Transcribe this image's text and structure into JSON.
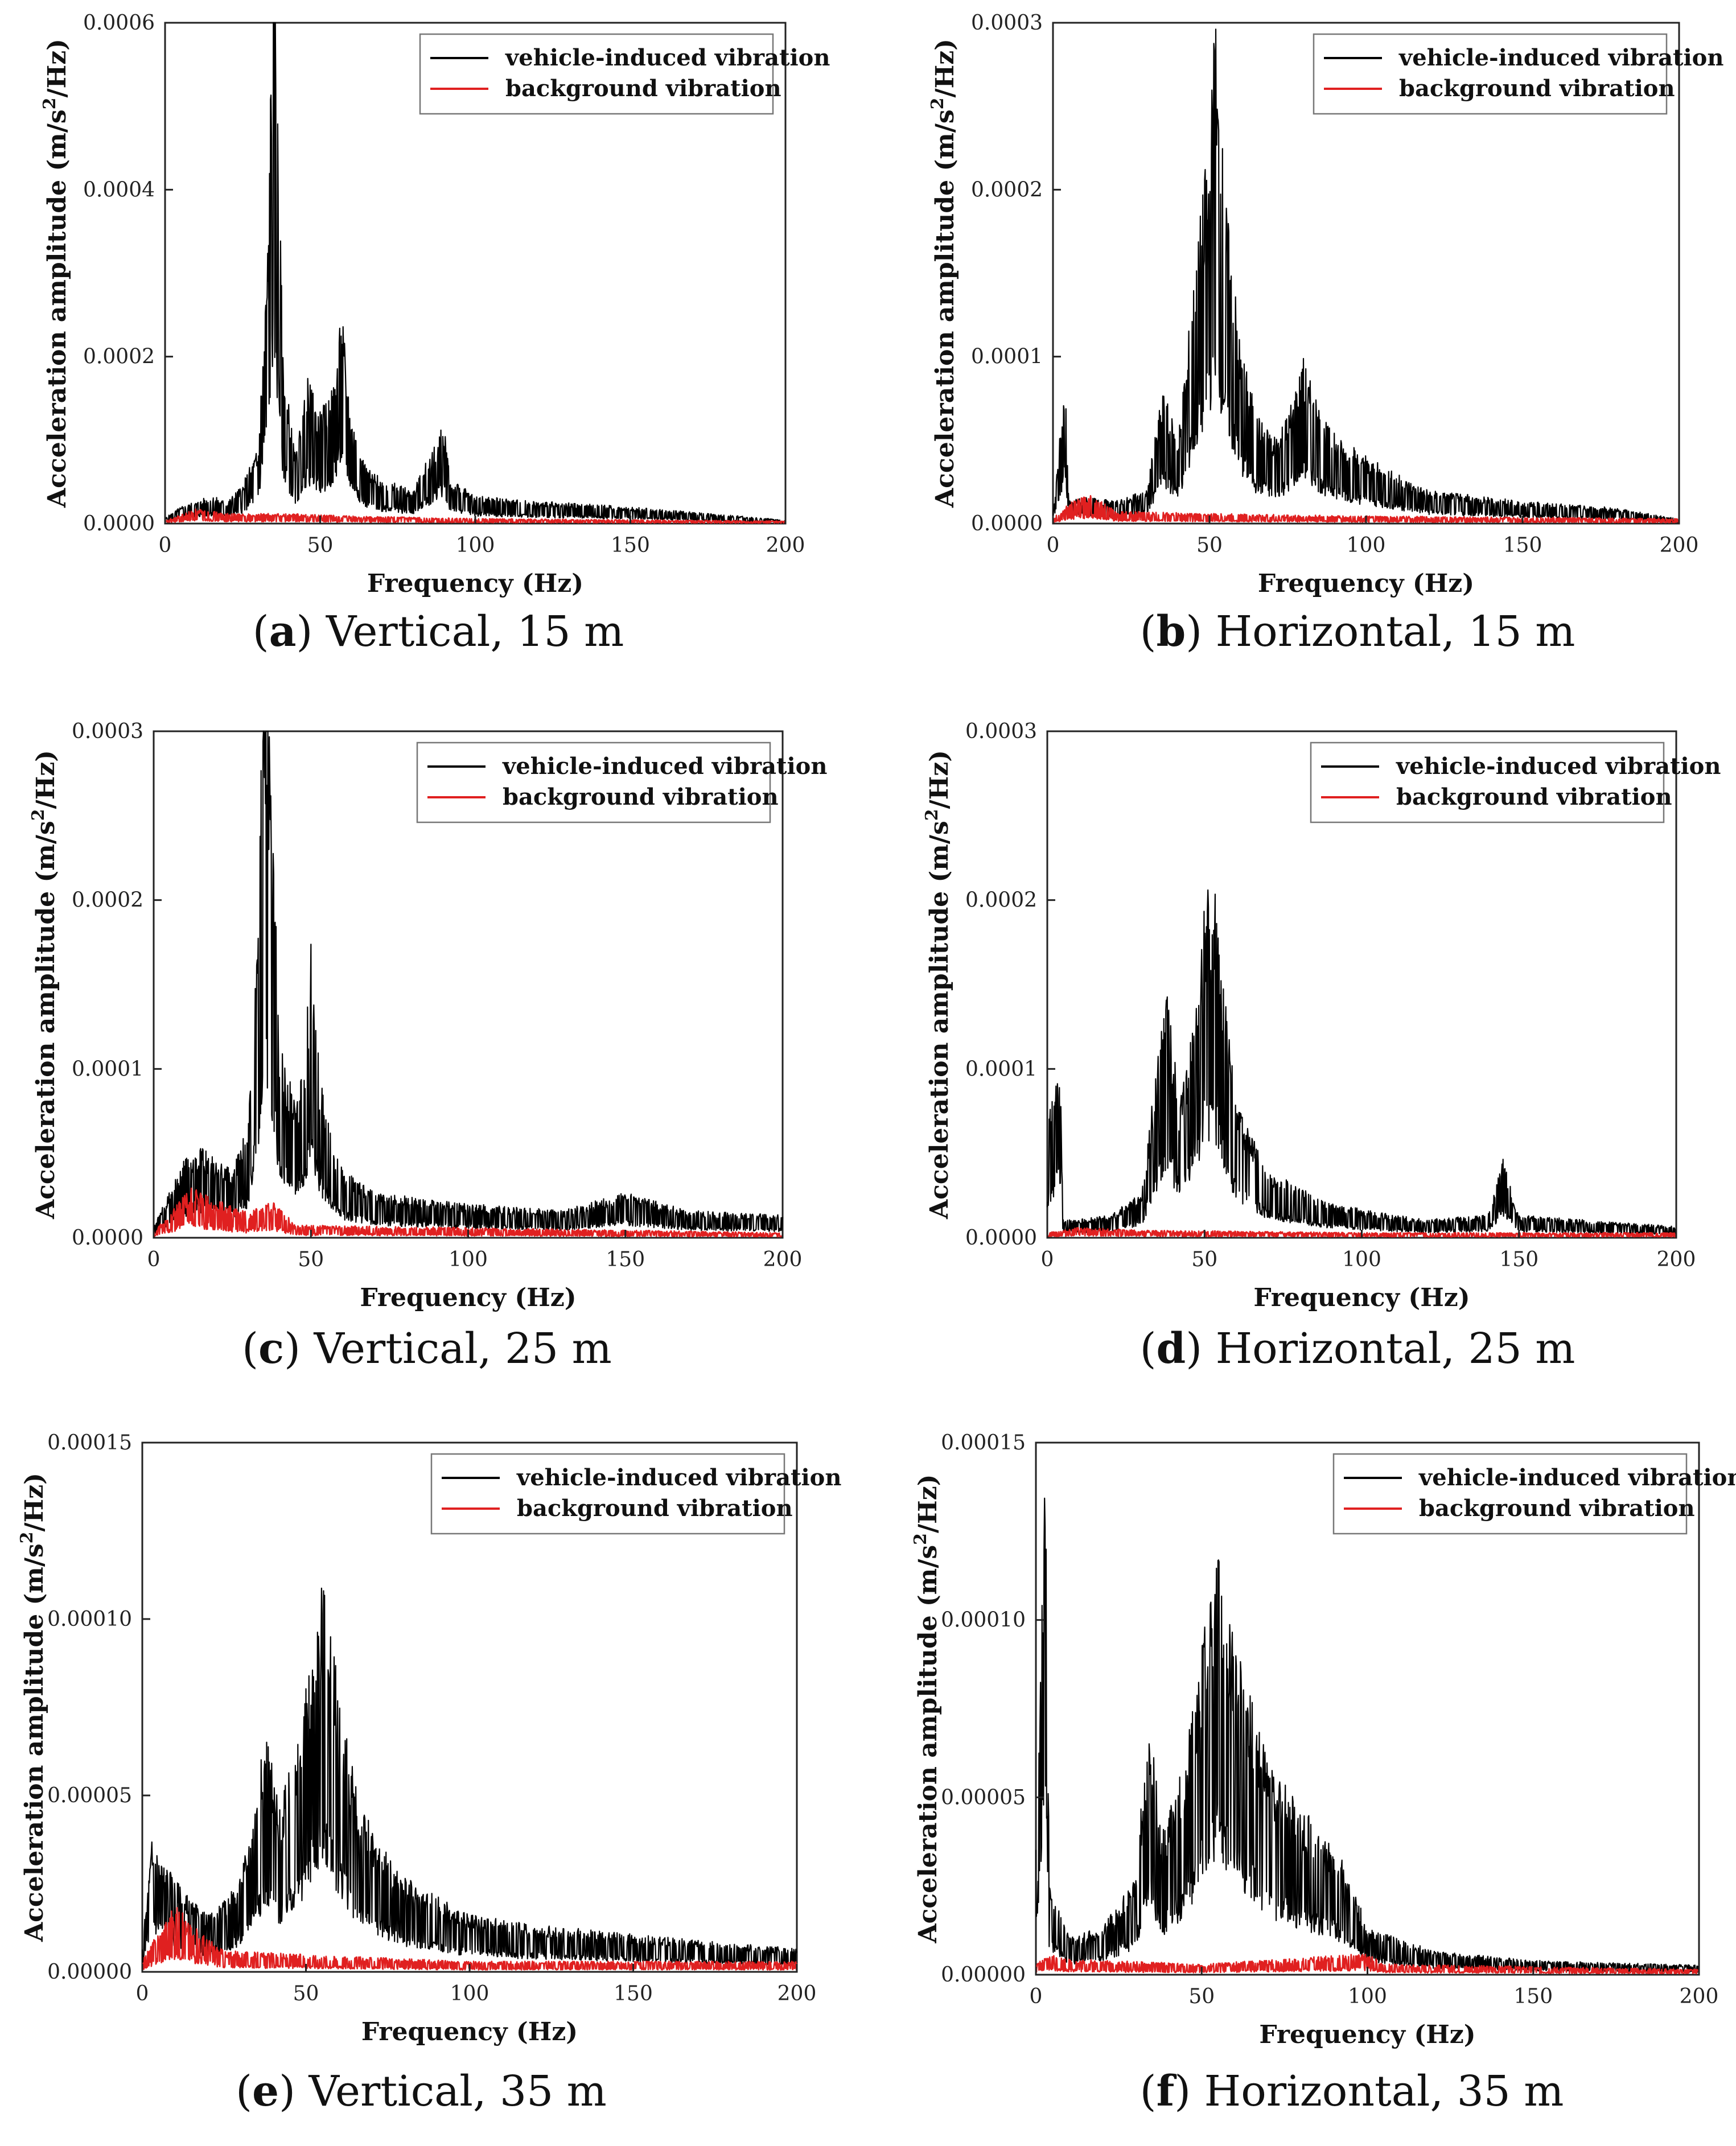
{
  "chart_data": [
    {
      "type": "line",
      "panel": "a",
      "caption_letter": "a",
      "caption_text": "Vertical, 15 m",
      "xlabel": "Frequency (Hz)",
      "ylabel_main": "Acceleration amplitude (m/s",
      "ylabel_sup": "2",
      "ylabel_end": "/Hz)",
      "xlim": [
        0,
        200
      ],
      "ylim": [
        0,
        0.0006
      ],
      "xticks": [
        0,
        50,
        100,
        150,
        200
      ],
      "yticks": [
        0,
        0.0002,
        0.0004,
        0.0006
      ],
      "ytick_labels": [
        "0.0000",
        "0.0002",
        "0.0004",
        "0.0006"
      ],
      "legend": [
        "vehicle-induced vibration",
        "background vibration"
      ],
      "legend_position": "top-right",
      "series": [
        {
          "name": "vehicle-induced vibration",
          "color": "#000000",
          "noise": 0.35,
          "points": [
            [
              0,
              5e-06
            ],
            [
              5,
              1.5e-05
            ],
            [
              10,
              2e-05
            ],
            [
              15,
              2.5e-05
            ],
            [
              20,
              2e-05
            ],
            [
              25,
              3.5e-05
            ],
            [
              30,
              7e-05
            ],
            [
              33,
              0.00025
            ],
            [
              35,
              0.00055
            ],
            [
              36,
              0.00042
            ],
            [
              38,
              0.00015
            ],
            [
              42,
              6e-05
            ],
            [
              46,
              0.00013
            ],
            [
              50,
              0.0001
            ],
            [
              54,
              0.00012
            ],
            [
              57,
              0.00019
            ],
            [
              60,
              0.0001
            ],
            [
              65,
              5e-05
            ],
            [
              70,
              4e-05
            ],
            [
              80,
              3e-05
            ],
            [
              90,
              9e-05
            ],
            [
              92,
              4e-05
            ],
            [
              100,
              2.5e-05
            ],
            [
              120,
              2e-05
            ],
            [
              150,
              1.5e-05
            ],
            [
              180,
              8e-06
            ],
            [
              200,
              3e-06
            ]
          ]
        },
        {
          "name": "background vibration",
          "color": "#e02020",
          "noise": 0.5,
          "points": [
            [
              0,
              2e-06
            ],
            [
              10,
              1.2e-05
            ],
            [
              20,
              8e-06
            ],
            [
              40,
              8e-06
            ],
            [
              60,
              6e-06
            ],
            [
              100,
              4e-06
            ],
            [
              150,
              3e-06
            ],
            [
              200,
              2e-06
            ]
          ]
        }
      ]
    },
    {
      "type": "line",
      "panel": "b",
      "caption_letter": "b",
      "caption_text": "Horizontal, 15 m",
      "xlabel": "Frequency (Hz)",
      "ylabel_main": "Acceleration amplitude (m/s",
      "ylabel_sup": "2",
      "ylabel_end": "/Hz)",
      "xlim": [
        0,
        200
      ],
      "ylim": [
        0,
        0.0003
      ],
      "xticks": [
        0,
        50,
        100,
        150,
        200
      ],
      "yticks": [
        0,
        0.0001,
        0.0002,
        0.0003
      ],
      "ytick_labels": [
        "0.0000",
        "0.0001",
        "0.0002",
        "0.0003"
      ],
      "legend": [
        "vehicle-induced vibration",
        "background vibration"
      ],
      "legend_position": "top-right",
      "series": [
        {
          "name": "vehicle-induced vibration",
          "color": "#000000",
          "noise": 0.35,
          "points": [
            [
              0,
              3e-06
            ],
            [
              4,
              6.8e-05
            ],
            [
              5,
              1e-05
            ],
            [
              10,
              1.2e-05
            ],
            [
              20,
              1e-05
            ],
            [
              30,
              1.5e-05
            ],
            [
              35,
              6e-05
            ],
            [
              40,
              4e-05
            ],
            [
              45,
              0.00011
            ],
            [
              50,
              0.00018
            ],
            [
              52,
              0.00023
            ],
            [
              55,
              0.00015
            ],
            [
              60,
              8e-05
            ],
            [
              65,
              5e-05
            ],
            [
              70,
              4e-05
            ],
            [
              75,
              5e-05
            ],
            [
              80,
              7.5e-05
            ],
            [
              85,
              5e-05
            ],
            [
              90,
              4e-05
            ],
            [
              100,
              3e-05
            ],
            [
              120,
              1.5e-05
            ],
            [
              150,
              1e-05
            ],
            [
              180,
              7e-06
            ],
            [
              200,
              2e-06
            ]
          ]
        },
        {
          "name": "background vibration",
          "color": "#e02020",
          "noise": 0.5,
          "points": [
            [
              0,
              2e-06
            ],
            [
              5,
              8e-06
            ],
            [
              12,
              1.2e-05
            ],
            [
              20,
              5e-06
            ],
            [
              50,
              4e-06
            ],
            [
              100,
              3e-06
            ],
            [
              200,
              2e-06
            ]
          ]
        }
      ]
    },
    {
      "type": "line",
      "panel": "c",
      "caption_letter": "c",
      "caption_text": "Vertical, 25 m",
      "xlabel": "Frequency (Hz)",
      "ylabel_main": "Acceleration amplitude (m/s",
      "ylabel_sup": "2",
      "ylabel_end": "/Hz)",
      "xlim": [
        0,
        200
      ],
      "ylim": [
        0,
        0.0003
      ],
      "xticks": [
        0,
        50,
        100,
        150,
        200
      ],
      "yticks": [
        0,
        0.0001,
        0.0002,
        0.0003
      ],
      "ytick_labels": [
        "0.0000",
        "0.0001",
        "0.0002",
        "0.0003"
      ],
      "legend": [
        "vehicle-induced vibration",
        "background vibration"
      ],
      "legend_position": "top-right",
      "series": [
        {
          "name": "vehicle-induced vibration",
          "color": "#000000",
          "noise": 0.35,
          "points": [
            [
              0,
              5e-06
            ],
            [
              5,
              2e-05
            ],
            [
              10,
              3.5e-05
            ],
            [
              15,
              4e-05
            ],
            [
              20,
              3.5e-05
            ],
            [
              25,
              3e-05
            ],
            [
              30,
              5e-05
            ],
            [
              33,
              0.00013
            ],
            [
              35,
              0.00026
            ],
            [
              37,
              0.00022
            ],
            [
              40,
              9e-05
            ],
            [
              45,
              6e-05
            ],
            [
              48,
              8e-05
            ],
            [
              50,
              0.00013
            ],
            [
              53,
              7e-05
            ],
            [
              57,
              4e-05
            ],
            [
              60,
              3e-05
            ],
            [
              70,
              2e-05
            ],
            [
              100,
              1.5e-05
            ],
            [
              130,
              1.2e-05
            ],
            [
              150,
              2e-05
            ],
            [
              170,
              1.2e-05
            ],
            [
              200,
              1e-05
            ]
          ]
        },
        {
          "name": "background vibration",
          "color": "#e02020",
          "noise": 0.5,
          "points": [
            [
              0,
              2e-06
            ],
            [
              5,
              1e-05
            ],
            [
              12,
              2e-05
            ],
            [
              20,
              1.5e-05
            ],
            [
              30,
              1e-05
            ],
            [
              38,
              1.5e-05
            ],
            [
              45,
              5e-06
            ],
            [
              100,
              4e-06
            ],
            [
              200,
              2e-06
            ]
          ]
        }
      ]
    },
    {
      "type": "line",
      "panel": "d",
      "caption_letter": "d",
      "caption_text": "Horizontal, 25 m",
      "xlabel": "Frequency (Hz)",
      "ylabel_main": "Acceleration amplitude (m/s",
      "ylabel_sup": "2",
      "ylabel_end": "/Hz)",
      "xlim": [
        0,
        200
      ],
      "ylim": [
        0,
        0.0003
      ],
      "xticks": [
        0,
        50,
        100,
        150,
        200
      ],
      "yticks": [
        0,
        0.0001,
        0.0002,
        0.0003
      ],
      "ytick_labels": [
        "0.0000",
        "0.0001",
        "0.0002",
        "0.0003"
      ],
      "legend": [
        "vehicle-induced vibration",
        "background vibration"
      ],
      "legend_position": "top-right",
      "series": [
        {
          "name": "vehicle-induced vibration",
          "color": "#000000",
          "noise": 0.35,
          "points": [
            [
              0,
              5e-05
            ],
            [
              4,
              8e-05
            ],
            [
              5,
              8e-06
            ],
            [
              10,
              8e-06
            ],
            [
              20,
              1e-05
            ],
            [
              30,
              2e-05
            ],
            [
              35,
              8e-05
            ],
            [
              38,
              0.00011
            ],
            [
              42,
              6e-05
            ],
            [
              45,
              8e-05
            ],
            [
              50,
              0.00015
            ],
            [
              53,
              0.00016
            ],
            [
              57,
              0.0001
            ],
            [
              60,
              6e-05
            ],
            [
              70,
              3e-05
            ],
            [
              90,
              1.5e-05
            ],
            [
              120,
              8e-06
            ],
            [
              140,
              1e-05
            ],
            [
              145,
              3.5e-05
            ],
            [
              150,
              1e-05
            ],
            [
              200,
              5e-06
            ]
          ]
        },
        {
          "name": "background vibration",
          "color": "#e02020",
          "noise": 0.5,
          "points": [
            [
              0,
              2e-06
            ],
            [
              10,
              4e-06
            ],
            [
              30,
              3e-06
            ],
            [
              100,
              2e-06
            ],
            [
              200,
              2e-06
            ]
          ]
        }
      ]
    },
    {
      "type": "line",
      "panel": "e",
      "caption_letter": "e",
      "caption_text": "Vertical, 35 m",
      "xlabel": "Frequency (Hz)",
      "ylabel_main": "Acceleration amplitude (m/s",
      "ylabel_sup": "2",
      "ylabel_end": "/Hz)",
      "xlim": [
        0,
        200
      ],
      "ylim": [
        0,
        0.00015
      ],
      "xticks": [
        0,
        50,
        100,
        150,
        200
      ],
      "yticks": [
        0,
        5e-05,
        0.0001,
        0.00015
      ],
      "ytick_labels": [
        "0.00000",
        "0.00005",
        "0.00010",
        "0.00015"
      ],
      "legend": [
        "vehicle-induced vibration",
        "background vibration"
      ],
      "legend_position": "top-right",
      "series": [
        {
          "name": "vehicle-induced vibration",
          "color": "#000000",
          "noise": 0.35,
          "points": [
            [
              0,
              5e-06
            ],
            [
              3,
              3e-05
            ],
            [
              6,
              2.5e-05
            ],
            [
              10,
              2e-05
            ],
            [
              15,
              1.5e-05
            ],
            [
              20,
              1.2e-05
            ],
            [
              25,
              1.5e-05
            ],
            [
              30,
              2e-05
            ],
            [
              35,
              4e-05
            ],
            [
              38,
              5.2e-05
            ],
            [
              42,
              3.5e-05
            ],
            [
              48,
              5e-05
            ],
            [
              55,
              8.5e-05
            ],
            [
              60,
              6e-05
            ],
            [
              65,
              4e-05
            ],
            [
              70,
              3e-05
            ],
            [
              80,
              2e-05
            ],
            [
              100,
              1.2e-05
            ],
            [
              120,
              1e-05
            ],
            [
              150,
              8e-06
            ],
            [
              180,
              6e-06
            ],
            [
              200,
              5e-06
            ]
          ]
        },
        {
          "name": "background vibration",
          "color": "#e02020",
          "noise": 0.5,
          "points": [
            [
              0,
              2e-06
            ],
            [
              5,
              8e-06
            ],
            [
              10,
              1.3e-05
            ],
            [
              15,
              9e-06
            ],
            [
              25,
              4e-06
            ],
            [
              60,
              3e-06
            ],
            [
              100,
              2e-06
            ],
            [
              200,
              2e-06
            ]
          ]
        }
      ]
    },
    {
      "type": "line",
      "panel": "f",
      "caption_letter": "f",
      "caption_text": "Horizontal, 35 m",
      "xlabel": "Frequency (Hz)",
      "ylabel_main": "Acceleration amplitude (m/s",
      "ylabel_sup": "2",
      "ylabel_end": "/Hz)",
      "xlim": [
        0,
        200
      ],
      "ylim": [
        0,
        0.00015
      ],
      "xticks": [
        0,
        50,
        100,
        150,
        200
      ],
      "yticks": [
        0,
        5e-05,
        0.0001,
        0.00015
      ],
      "ytick_labels": [
        "0.00000",
        "0.00005",
        "0.00010",
        "0.00015"
      ],
      "legend": [
        "vehicle-induced vibration",
        "background vibration"
      ],
      "legend_position": "top-right",
      "series": [
        {
          "name": "vehicle-induced vibration",
          "color": "#000000",
          "noise": 0.35,
          "points": [
            [
              0,
              3e-05
            ],
            [
              3,
              0.00012
            ],
            [
              4,
              2e-05
            ],
            [
              10,
              8e-06
            ],
            [
              20,
              1e-05
            ],
            [
              30,
              2e-05
            ],
            [
              34,
              5.5e-05
            ],
            [
              38,
              3e-05
            ],
            [
              45,
              4.5e-05
            ],
            [
              50,
              7e-05
            ],
            [
              55,
              9e-05
            ],
            [
              60,
              7e-05
            ],
            [
              70,
              4.5e-05
            ],
            [
              80,
              3.5e-05
            ],
            [
              90,
              2.8e-05
            ],
            [
              95,
              2e-05
            ],
            [
              100,
              1e-05
            ],
            [
              120,
              5e-06
            ],
            [
              150,
              3e-06
            ],
            [
              200,
              2e-06
            ]
          ]
        },
        {
          "name": "background vibration",
          "color": "#e02020",
          "noise": 0.5,
          "points": [
            [
              0,
              2e-06
            ],
            [
              5,
              4e-06
            ],
            [
              10,
              3e-06
            ],
            [
              50,
              2e-06
            ],
            [
              100,
              4e-06
            ],
            [
              105,
              2e-06
            ],
            [
              200,
              1e-06
            ]
          ]
        }
      ]
    }
  ]
}
